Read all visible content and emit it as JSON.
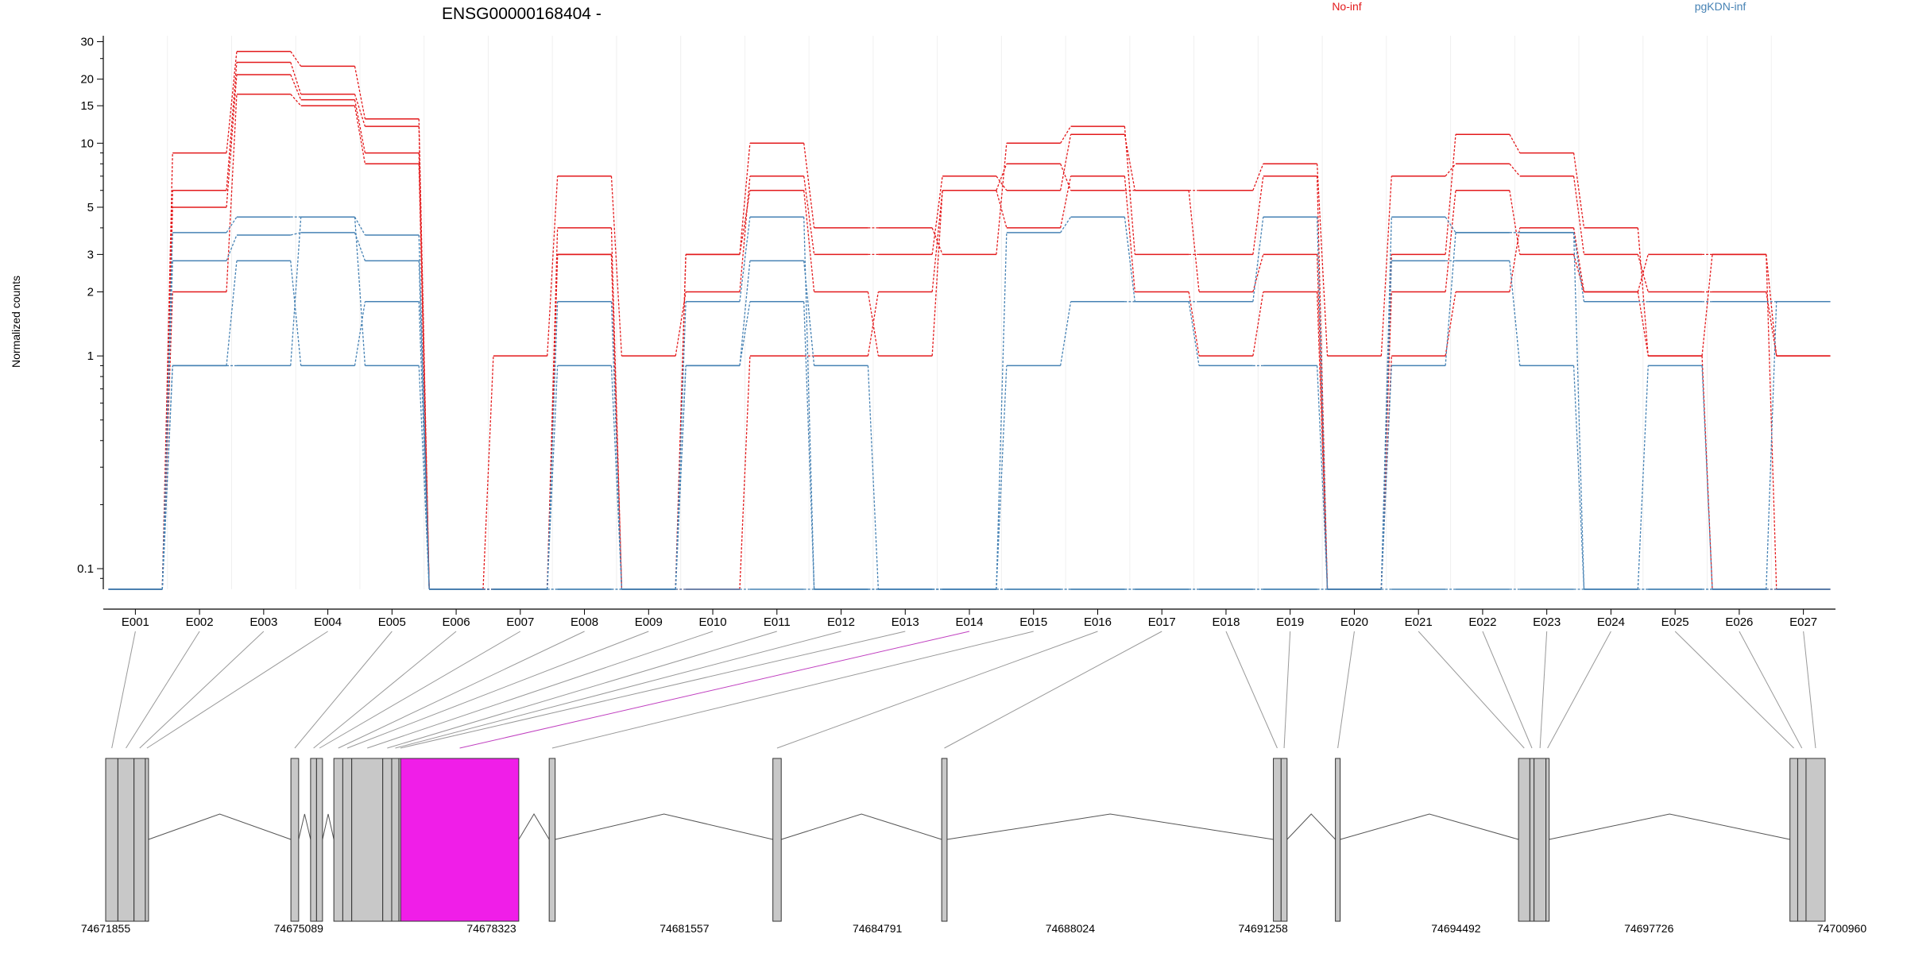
{
  "chart_data": {
    "type": "line",
    "title": "ENSG00000168404 -",
    "ylabel": "Normalized counts",
    "y_scale": "log",
    "ylim": [
      0.08,
      32
    ],
    "y_ticks": [
      0.1,
      1,
      2,
      3,
      5,
      10,
      15,
      20,
      30
    ],
    "y_tick_labels": [
      "0.1",
      "1",
      "2",
      "3",
      "5",
      "10",
      "15",
      "20",
      "30"
    ],
    "categories": [
      "E001",
      "E002",
      "E003",
      "E004",
      "E005",
      "E006",
      "E007",
      "E008",
      "E009",
      "E010",
      "E011",
      "E012",
      "E013",
      "E014",
      "E015",
      "E016",
      "E017",
      "E018",
      "E019",
      "E020",
      "E021",
      "E022",
      "E023",
      "E024",
      "E025",
      "E026",
      "E027"
    ],
    "legend": [
      {
        "name": "No-inf",
        "color": "#e31a1c"
      },
      {
        "name": "pgKDN-inf",
        "color": "#4682b4"
      }
    ],
    "series": [
      {
        "group": "No-inf",
        "values": [
          0.08,
          9,
          27,
          23,
          13,
          0.08,
          0.08,
          4,
          0.08,
          3,
          10,
          4,
          4,
          3,
          10,
          12,
          3,
          3,
          7,
          0.08,
          3,
          11,
          9,
          4,
          1,
          3,
          0.08
        ]
      },
      {
        "group": "No-inf",
        "values": [
          0.08,
          6,
          24,
          17,
          12,
          0.08,
          1,
          7,
          1,
          2,
          7,
          3,
          3,
          7,
          6,
          11,
          6,
          6,
          8,
          1,
          7,
          8,
          7,
          3,
          2,
          2,
          1
        ]
      },
      {
        "group": "No-inf",
        "values": [
          0.08,
          5,
          21,
          16,
          9,
          0.08,
          0.08,
          3,
          0.08,
          3,
          6,
          2,
          1,
          6,
          8,
          6,
          6,
          2,
          3,
          0.08,
          2,
          6,
          3,
          2,
          3,
          3,
          1
        ]
      },
      {
        "group": "No-inf",
        "values": [
          0.08,
          2,
          17,
          15,
          8,
          0.08,
          0.08,
          3,
          0.08,
          0.08,
          1,
          1,
          2,
          6,
          4,
          7,
          2,
          1,
          2,
          0.08,
          1,
          2,
          4,
          2,
          1,
          0.08,
          0.08
        ]
      },
      {
        "group": "pgKDN-inf",
        "values": [
          0.08,
          3.8,
          4.5,
          4.5,
          3.7,
          0.08,
          0.08,
          1.8,
          0.08,
          1.8,
          4.5,
          0.08,
          0.08,
          0.08,
          3.8,
          4.5,
          1.8,
          1.8,
          4.5,
          0.08,
          4.5,
          3.8,
          3.8,
          1.8,
          1.8,
          1.8,
          1.8
        ]
      },
      {
        "group": "pgKDN-inf",
        "values": [
          0.08,
          2.8,
          3.7,
          3.8,
          2.8,
          0.08,
          0.08,
          0.9,
          0.08,
          0.9,
          2.8,
          0.9,
          0.08,
          0.08,
          0.9,
          1.8,
          1.8,
          0.9,
          0.9,
          0.08,
          2.8,
          2.8,
          0.9,
          0.08,
          0.9,
          0.08,
          1.8
        ]
      },
      {
        "group": "pgKDN-inf",
        "values": [
          0.08,
          0.9,
          2.8,
          0.9,
          1.8,
          0.08,
          0.08,
          0.08,
          0.08,
          0.9,
          1.8,
          0.08,
          0.08,
          0.08,
          0.08,
          0.08,
          0.08,
          0.08,
          0.08,
          0.08,
          0.9,
          3.8,
          3.8,
          0.08,
          0.08,
          0.08,
          0.08
        ]
      },
      {
        "group": "pgKDN-inf",
        "values": [
          0.08,
          0.9,
          0.9,
          4.5,
          0.9,
          0.08,
          0.08,
          0.08,
          0.08,
          0.08,
          0.08,
          0.08,
          0.08,
          0.08,
          0.08,
          0.08,
          0.08,
          0.08,
          0.08,
          0.08,
          0.08,
          0.08,
          0.08,
          0.08,
          0.08,
          0.08,
          0.08
        ]
      }
    ],
    "gene_model": {
      "x_ticks": [
        74671855,
        74675089,
        74678323,
        74681557,
        74684791,
        74688024,
        74691258,
        74694492,
        74697726,
        74700960
      ],
      "x_tick_labels": [
        "74671855",
        "74675089",
        "74678323",
        "74681557",
        "74684791",
        "74688024",
        "74691258",
        "74694492",
        "74697726",
        "74700960"
      ],
      "highlight_exon": "E014",
      "highlight_color": "#f01ee8",
      "exons": [
        {
          "id": "E001",
          "start": 74671855,
          "end": 74672060
        },
        {
          "id": "E002",
          "start": 74672060,
          "end": 74672330
        },
        {
          "id": "E003",
          "start": 74672330,
          "end": 74672520
        },
        {
          "id": "E004",
          "start": 74672520,
          "end": 74672550
        },
        {
          "id": "E005",
          "start": 74674960,
          "end": 74675090
        },
        {
          "id": "E006",
          "start": 74675290,
          "end": 74675390
        },
        {
          "id": "E007",
          "start": 74675390,
          "end": 74675490
        },
        {
          "id": "E008",
          "start": 74675680,
          "end": 74675830
        },
        {
          "id": "E009",
          "start": 74675830,
          "end": 74675980
        },
        {
          "id": "E010",
          "start": 74675980,
          "end": 74676500
        },
        {
          "id": "E011",
          "start": 74676500,
          "end": 74676650
        },
        {
          "id": "E012",
          "start": 74676650,
          "end": 74676770
        },
        {
          "id": "E013",
          "start": 74676770,
          "end": 74676800
        },
        {
          "id": "E014",
          "start": 74676800,
          "end": 74678780
        },
        {
          "id": "E015",
          "start": 74679290,
          "end": 74679390
        },
        {
          "id": "E016",
          "start": 74683040,
          "end": 74683180
        },
        {
          "id": "E017",
          "start": 74685870,
          "end": 74685960
        },
        {
          "id": "E018",
          "start": 74691430,
          "end": 74691560
        },
        {
          "id": "E019",
          "start": 74691560,
          "end": 74691660
        },
        {
          "id": "E020",
          "start": 74692470,
          "end": 74692550
        },
        {
          "id": "E021",
          "start": 74695540,
          "end": 74695730
        },
        {
          "id": "E022",
          "start": 74695730,
          "end": 74695800
        },
        {
          "id": "E023",
          "start": 74695800,
          "end": 74696000
        },
        {
          "id": "E024",
          "start": 74696000,
          "end": 74696030
        },
        {
          "id": "E025",
          "start": 74700090,
          "end": 74700220
        },
        {
          "id": "E026",
          "start": 74700220,
          "end": 74700360
        },
        {
          "id": "E027",
          "start": 74700360,
          "end": 74700680
        }
      ]
    }
  }
}
